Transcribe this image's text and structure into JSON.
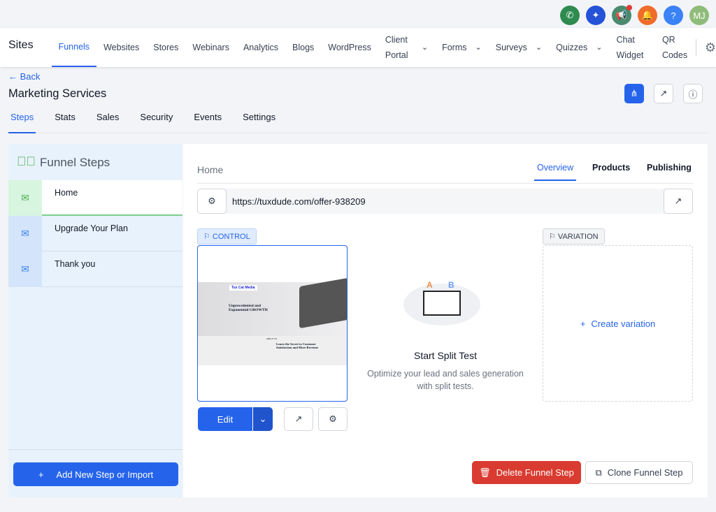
{
  "header": {
    "avatar_initials": "MJ",
    "icons": [
      "phone-icon",
      "sparkles-icon",
      "megaphone-icon",
      "bell-icon",
      "help-icon"
    ]
  },
  "nav": {
    "brand": "Sites",
    "items": [
      {
        "label": "Funnels"
      },
      {
        "label": "Websites"
      },
      {
        "label": "Stores"
      },
      {
        "label": "Webinars"
      },
      {
        "label": "Analytics"
      },
      {
        "label": "Blogs"
      },
      {
        "label": "WordPress"
      },
      {
        "label": "Client Portal"
      },
      {
        "label": "Forms"
      },
      {
        "label": "Surveys"
      },
      {
        "label": "Quizzes"
      },
      {
        "label": "Chat Widget"
      },
      {
        "label": "QR Codes"
      }
    ]
  },
  "page": {
    "back": "Back",
    "title": "Marketing Services",
    "tabs": [
      "Steps",
      "Stats",
      "Sales",
      "Security",
      "Events",
      "Settings"
    ]
  },
  "steps": {
    "heading": "Funnel Steps",
    "items": [
      "Home",
      "Upgrade Your Plan",
      "Thank you"
    ],
    "add_button": "Add New Step or Import"
  },
  "detail": {
    "step_name": "Home",
    "tabs": [
      "Overview",
      "Products",
      "Publishing"
    ],
    "url": "https://tuxdude.com/offer-938209",
    "control_label": "CONTROL",
    "variation_label": "VARIATION",
    "edit": "Edit",
    "create_variation": "Create variation",
    "split_title": "Start Split Test",
    "split_desc": "Optimize your lead and sales generation with split tests.",
    "delete": "Delete Funnel Step",
    "clone": "Clone Funnel Step",
    "preview": {
      "logo": "Tux Cat Media",
      "headline": "Unprecedented and Exponential GROWTH",
      "section": "ABOUT US",
      "subhead": "Learn the Secret to Customer Satisfaction and More Revenue"
    }
  },
  "colors": {
    "accent": "#2563eb",
    "danger": "#d93b30",
    "success": "#4caf50"
  }
}
